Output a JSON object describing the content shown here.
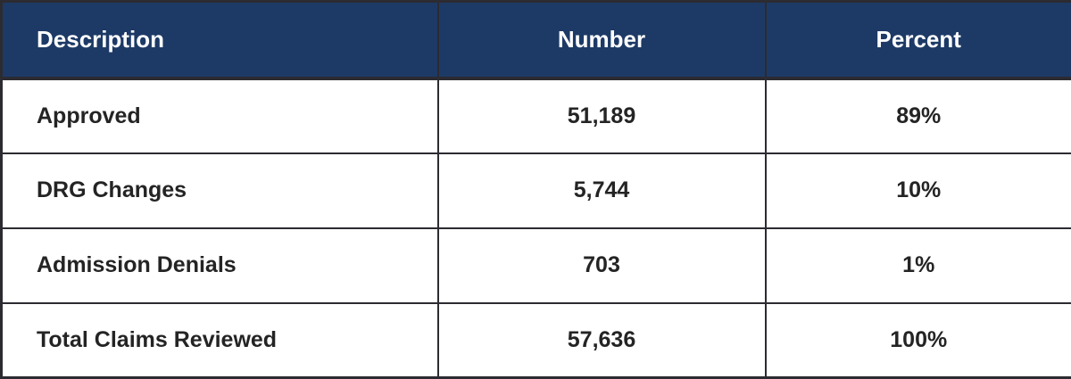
{
  "table": {
    "header": {
      "description": "Description",
      "number": "Number",
      "percent": "Percent"
    },
    "rows": [
      {
        "description": "Approved",
        "number": "51,189",
        "percent": "89%"
      },
      {
        "description": "DRG Changes",
        "number": "5,744",
        "percent": "10%"
      },
      {
        "description": "Admission Denials",
        "number": "703",
        "percent": "1%"
      },
      {
        "description": "Total Claims Reviewed",
        "number": "57,636",
        "percent": "100%"
      }
    ]
  },
  "chart_data": {
    "type": "table",
    "columns": [
      "Description",
      "Number",
      "Percent"
    ],
    "rows": [
      [
        "Approved",
        "51,189",
        "89%"
      ],
      [
        "DRG Changes",
        "5,744",
        "10%"
      ],
      [
        "Admission Denials",
        "703",
        "1%"
      ],
      [
        "Total Claims Reviewed",
        "57,636",
        "100%"
      ]
    ],
    "numeric": {
      "categories": [
        "Approved",
        "DRG Changes",
        "Admission Denials",
        "Total Claims Reviewed"
      ],
      "number_values": [
        51189,
        5744,
        703,
        57636
      ],
      "percent_values": [
        89,
        10,
        1,
        100
      ]
    }
  },
  "colors": {
    "header_bg": "#1d3a66",
    "header_text": "#ffffff",
    "body_text": "#242424",
    "border": "#2b2b31",
    "row_bg": "#ffffff"
  }
}
